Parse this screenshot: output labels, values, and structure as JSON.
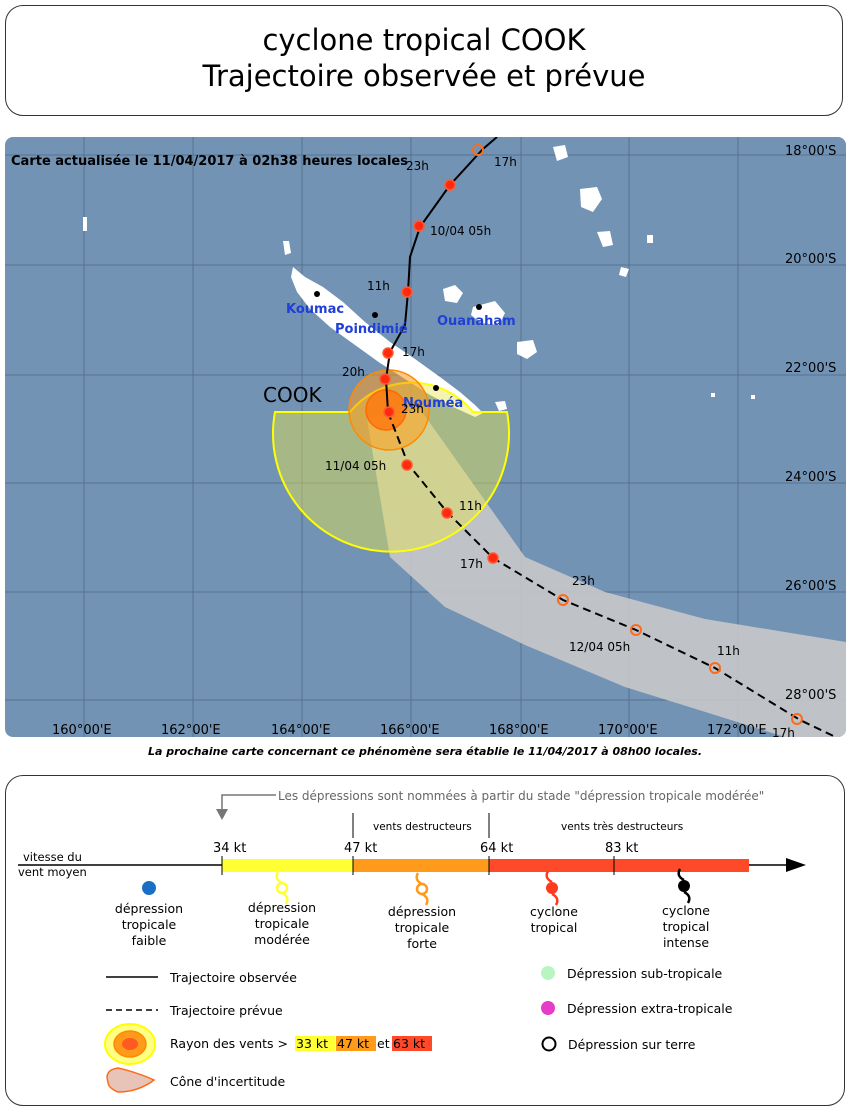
{
  "title": {
    "line1": "cyclone tropical COOK",
    "line2": "Trajectoire observée et prévue"
  },
  "map": {
    "updated": "Carte actualisée le 11/04/2017 à 02h38 heures locales",
    "cyclone_name": "COOK",
    "lat_labels": [
      "18°00'S",
      "20°00'S",
      "22°00'S",
      "24°00'S",
      "26°00'S",
      "28°00'S"
    ],
    "lon_labels": [
      "160°00'E",
      "162°00'E",
      "164°00'E",
      "166°00'E",
      "168°00'E",
      "170°00'E",
      "172°00'E"
    ],
    "places": [
      "Koumac",
      "Poindimié",
      "Ouanaham",
      "Nouméa"
    ],
    "track_labels": [
      "17h",
      "23h",
      "10/04 05h",
      "11h",
      "17h",
      "20h",
      "23h",
      "11/04 05h",
      "11h",
      "17h",
      "23h",
      "12/04 05h",
      "11h",
      "17h"
    ],
    "colors": {
      "ocean": "#7393b5",
      "land": "#ffffff",
      "cone": "#c8c8c8",
      "wind33": "#ffff33",
      "wind47": "#ff9a1a",
      "wind63": "#ff4a2a",
      "track": "#000000",
      "place_label": "#1f3fd6"
    }
  },
  "next_map": "La prochaine carte concernant ce phénomène sera établie le 11/04/2017 à 08h00 locales.",
  "legend": {
    "naming_note": "Les dépressions sont nommées à partir du stade \"dépression tropicale modérée\"",
    "destructive": "vents destructeurs",
    "very_destructive": "vents très destructeurs",
    "wind_speed_l1": "vitesse du",
    "wind_speed_l2": "vent moyen",
    "thresholds": [
      "34 kt",
      "47 kt",
      "64 kt",
      "83 kt"
    ],
    "stages": [
      {
        "lines": [
          "dépression",
          "tropicale",
          "faible"
        ],
        "color": "#1a6fc4"
      },
      {
        "lines": [
          "dépression",
          "tropicale",
          "modérée"
        ],
        "color": "#ffff33"
      },
      {
        "lines": [
          "dépression",
          "tropicale",
          "forte"
        ],
        "color": "#ff9a1a"
      },
      {
        "lines": [
          "cyclone",
          "tropical"
        ],
        "color": "#ff3b1f"
      },
      {
        "lines": [
          "cyclone",
          "tropical",
          "intense"
        ],
        "color": "#000000"
      }
    ],
    "observed": "Trajectoire observée",
    "forecast": "Trajectoire prévue",
    "wind_radius": "Rayon des vents >",
    "kt33": "33 kt",
    "kt47": "47 kt",
    "and": "et",
    "kt63": "63 kt",
    "cone": "Cône d'incertitude",
    "subtropical": "Dépression sub-tropicale",
    "extratropical": "Dépression extra-tropicale",
    "overland": "Dépression sur terre",
    "colors": {
      "subtropical": "#b8f5c0",
      "extratropical": "#e63cc8"
    }
  }
}
